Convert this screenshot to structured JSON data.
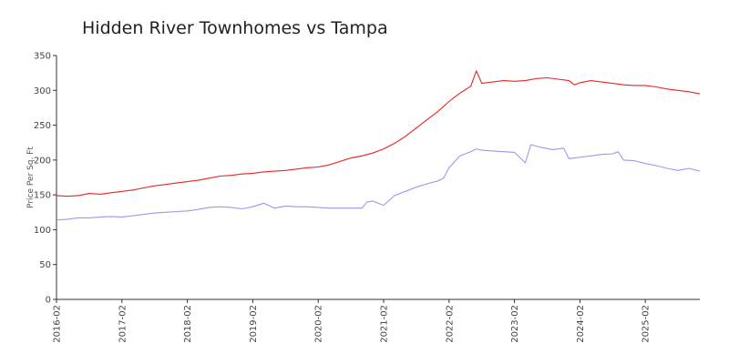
{
  "colors": {
    "tampa": "#ee2222",
    "hidden_river": "#9999ee",
    "axis": "#333333"
  },
  "chart_data": {
    "type": "line",
    "title": "Hidden River Townhomes vs Tampa",
    "xlabel": "",
    "ylabel": "Price Per Sq. Ft",
    "xlim": [
      "2016-02",
      "2025-12"
    ],
    "ylim": [
      0,
      350
    ],
    "grid": false,
    "yticks": [
      0,
      50,
      100,
      150,
      200,
      250,
      300,
      350
    ],
    "xticks": [
      "2016-02",
      "2017-02",
      "2018-02",
      "2019-02",
      "2020-02",
      "2021-02",
      "2022-02",
      "2023-02",
      "2024-02",
      "2025-02"
    ],
    "series": [
      {
        "name": "",
        "color": "#ee2222",
        "points": [
          [
            "2016-02",
            149
          ],
          [
            "2016-04",
            148
          ],
          [
            "2016-06",
            149
          ],
          [
            "2016-08",
            152
          ],
          [
            "2016-10",
            151
          ],
          [
            "2016-12",
            153
          ],
          [
            "2017-02",
            155
          ],
          [
            "2017-04",
            157
          ],
          [
            "2017-06",
            160
          ],
          [
            "2017-08",
            163
          ],
          [
            "2017-10",
            165
          ],
          [
            "2017-12",
            167
          ],
          [
            "2018-02",
            169
          ],
          [
            "2018-04",
            171
          ],
          [
            "2018-06",
            174
          ],
          [
            "2018-08",
            177
          ],
          [
            "2018-10",
            178
          ],
          [
            "2018-12",
            180
          ],
          [
            "2019-02",
            181
          ],
          [
            "2019-04",
            183
          ],
          [
            "2019-06",
            184
          ],
          [
            "2019-08",
            185
          ],
          [
            "2019-10",
            187
          ],
          [
            "2019-12",
            189
          ],
          [
            "2020-02",
            190
          ],
          [
            "2020-04",
            193
          ],
          [
            "2020-06",
            198
          ],
          [
            "2020-08",
            203
          ],
          [
            "2020-10",
            206
          ],
          [
            "2020-12",
            210
          ],
          [
            "2021-02",
            216
          ],
          [
            "2021-04",
            224
          ],
          [
            "2021-06",
            234
          ],
          [
            "2021-08",
            246
          ],
          [
            "2021-10",
            258
          ],
          [
            "2021-12",
            270
          ],
          [
            "2022-02",
            284
          ],
          [
            "2022-04",
            296
          ],
          [
            "2022-06",
            306
          ],
          [
            "2022-07",
            328
          ],
          [
            "2022-08",
            310
          ],
          [
            "2022-10",
            312
          ],
          [
            "2022-12",
            314
          ],
          [
            "2023-02",
            313
          ],
          [
            "2023-04",
            314
          ],
          [
            "2023-06",
            317
          ],
          [
            "2023-08",
            318
          ],
          [
            "2023-10",
            316
          ],
          [
            "2023-12",
            314
          ],
          [
            "2024-01",
            308
          ],
          [
            "2024-02",
            311
          ],
          [
            "2024-04",
            314
          ],
          [
            "2024-06",
            312
          ],
          [
            "2024-08",
            310
          ],
          [
            "2024-10",
            308
          ],
          [
            "2024-12",
            307
          ],
          [
            "2025-02",
            307
          ],
          [
            "2025-04",
            305
          ],
          [
            "2025-06",
            302
          ],
          [
            "2025-08",
            300
          ],
          [
            "2025-10",
            298
          ],
          [
            "2025-12",
            295
          ]
        ]
      },
      {
        "name": "",
        "color": "#9999ee",
        "points": [
          [
            "2016-02",
            114
          ],
          [
            "2016-04",
            115
          ],
          [
            "2016-06",
            117
          ],
          [
            "2016-08",
            117
          ],
          [
            "2016-10",
            118
          ],
          [
            "2016-12",
            119
          ],
          [
            "2017-02",
            118
          ],
          [
            "2017-04",
            120
          ],
          [
            "2017-06",
            122
          ],
          [
            "2017-08",
            124
          ],
          [
            "2017-10",
            125
          ],
          [
            "2017-12",
            126
          ],
          [
            "2018-02",
            127
          ],
          [
            "2018-04",
            129
          ],
          [
            "2018-06",
            132
          ],
          [
            "2018-08",
            133
          ],
          [
            "2018-10",
            132
          ],
          [
            "2018-12",
            130
          ],
          [
            "2019-02",
            133
          ],
          [
            "2019-04",
            138
          ],
          [
            "2019-06",
            131
          ],
          [
            "2019-08",
            134
          ],
          [
            "2019-10",
            133
          ],
          [
            "2019-12",
            133
          ],
          [
            "2020-02",
            132
          ],
          [
            "2020-04",
            131
          ],
          [
            "2020-06",
            131
          ],
          [
            "2020-08",
            131
          ],
          [
            "2020-10",
            131
          ],
          [
            "2020-11",
            140
          ],
          [
            "2020-12",
            141
          ],
          [
            "2021-02",
            135
          ],
          [
            "2021-04",
            149
          ],
          [
            "2021-06",
            155
          ],
          [
            "2021-08",
            161
          ],
          [
            "2021-10",
            166
          ],
          [
            "2021-12",
            170
          ],
          [
            "2022-01",
            174
          ],
          [
            "2022-02",
            189
          ],
          [
            "2022-04",
            206
          ],
          [
            "2022-06",
            212
          ],
          [
            "2022-07",
            216
          ],
          [
            "2022-08",
            214
          ],
          [
            "2022-10",
            213
          ],
          [
            "2022-12",
            212
          ],
          [
            "2023-02",
            211
          ],
          [
            "2023-04",
            196
          ],
          [
            "2023-05",
            222
          ],
          [
            "2023-07",
            218
          ],
          [
            "2023-09",
            215
          ],
          [
            "2023-11",
            217
          ],
          [
            "2023-12",
            202
          ],
          [
            "2024-02",
            204
          ],
          [
            "2024-04",
            206
          ],
          [
            "2024-06",
            208
          ],
          [
            "2024-08",
            209
          ],
          [
            "2024-09",
            212
          ],
          [
            "2024-10",
            200
          ],
          [
            "2024-12",
            199
          ],
          [
            "2025-02",
            195
          ],
          [
            "2025-04",
            192
          ],
          [
            "2025-06",
            188
          ],
          [
            "2025-08",
            185
          ],
          [
            "2025-10",
            188
          ],
          [
            "2025-12",
            184
          ]
        ]
      }
    ]
  }
}
